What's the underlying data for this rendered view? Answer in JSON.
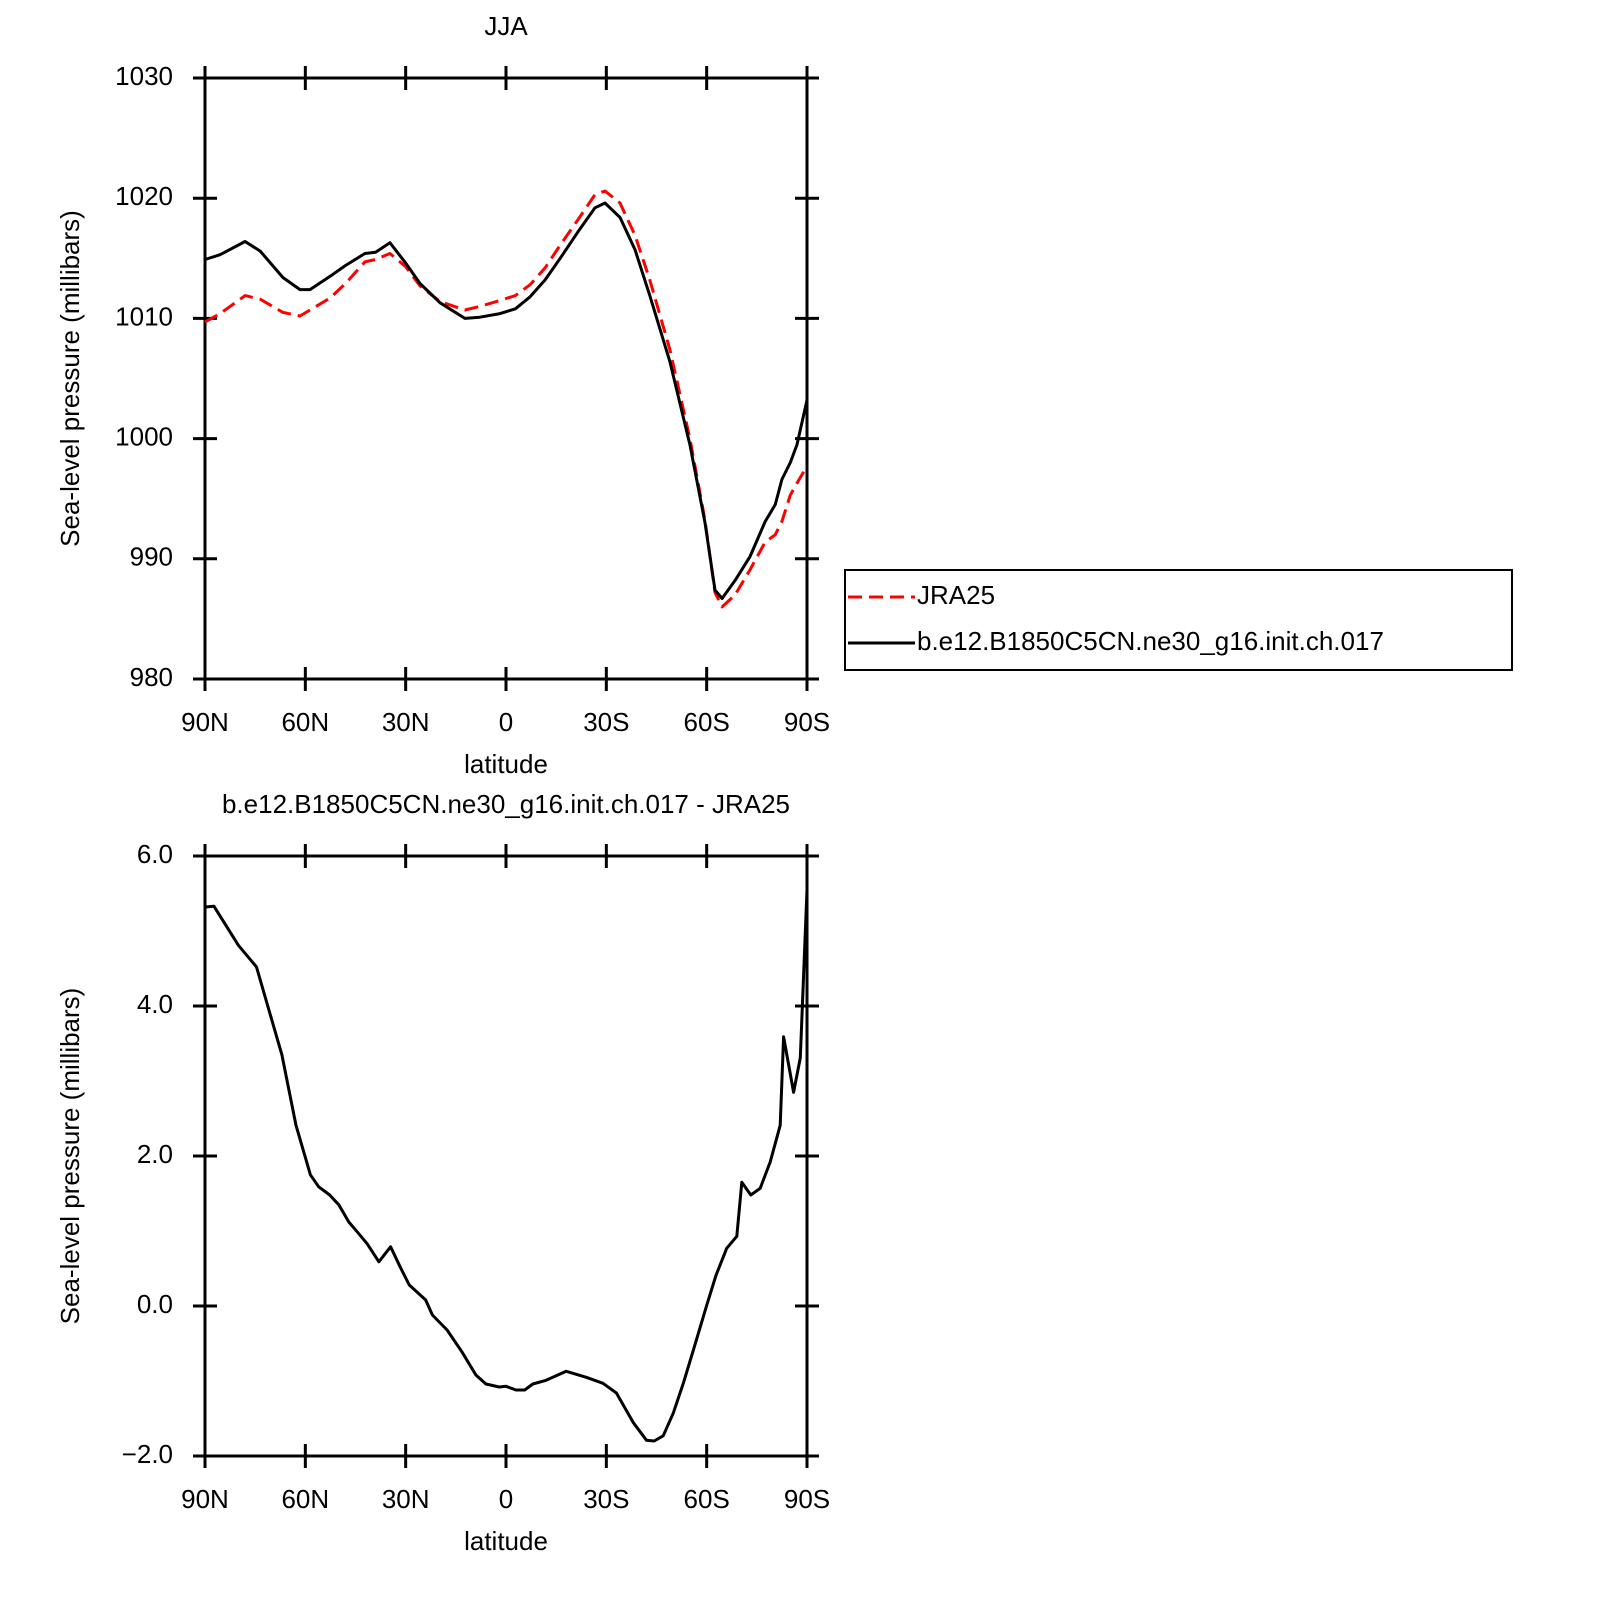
{
  "chart_data": [
    {
      "type": "line",
      "title": "JJA",
      "xlabel": "latitude",
      "ylabel": "Sea-level pressure (millibars)",
      "x": [
        90,
        85.5,
        78,
        73.5,
        66.7,
        61.6,
        58.6,
        52.6,
        48,
        42.2,
        39,
        34.7,
        30,
        25.7,
        19.7,
        12.3,
        7.8,
        1.8,
        -2.8,
        -7.2,
        -11.7,
        -16.2,
        -21.5,
        -26.6,
        -29.6,
        -34.1,
        -38.6,
        -43,
        -49,
        -55,
        -59.5,
        -62.5,
        -64.6,
        -68.5,
        -73,
        -77.5,
        -80.5,
        -82.5,
        -85,
        -87,
        -90
      ],
      "series": [
        {
          "name": "JRA25",
          "color": "#ff0000",
          "line_style": "dashed",
          "values": [
            1009.7,
            1010.4,
            1011.9,
            1011.6,
            1010.5,
            1010.2,
            1010.7,
            1011.7,
            1012.9,
            1014.7,
            1014.9,
            1015.4,
            1014.3,
            1012.7,
            1011.4,
            1010.7,
            1011.0,
            1011.5,
            1011.9,
            1012.8,
            1014.2,
            1016.1,
            1018.2,
            1020.3,
            1020.6,
            1019.6,
            1016.9,
            1013.2,
            1007.4,
            1000.0,
            993.2,
            987.2,
            986.0,
            987.0,
            989.1,
            991.4,
            992.0,
            993.1,
            995.3,
            996.3,
            997.7
          ]
        },
        {
          "name": "b.e12.B1850C5CN.ne30_g16.init.ch.017",
          "color": "#000000",
          "line_style": "solid",
          "values": [
            1014.9,
            1015.3,
            1016.4,
            1015.6,
            1013.4,
            1012.4,
            1012.4,
            1013.5,
            1014.4,
            1015.4,
            1015.5,
            1016.3,
            1014.6,
            1012.9,
            1011.3,
            1010.0,
            1010.1,
            1010.4,
            1010.8,
            1011.8,
            1013.2,
            1015.0,
            1017.2,
            1019.2,
            1019.6,
            1018.4,
            1015.7,
            1011.9,
            1006.4,
            999.5,
            993.0,
            987.4,
            986.7,
            988.2,
            990.2,
            993.1,
            994.5,
            996.6,
            998.0,
            999.5,
            1003.2
          ]
        }
      ],
      "xlim": [
        90,
        -90
      ],
      "ylim": [
        980,
        1030
      ],
      "xticks": [
        {
          "value": 90,
          "label": "90N"
        },
        {
          "value": 60,
          "label": "60N"
        },
        {
          "value": 30,
          "label": "30N"
        },
        0,
        {
          "value": -30,
          "label": "30S"
        },
        {
          "value": -60,
          "label": "60S"
        },
        {
          "value": -90,
          "label": "90S"
        }
      ],
      "yticks": [
        980,
        990,
        1000,
        1010,
        1020,
        1030
      ],
      "legend": "outside right"
    },
    {
      "type": "line",
      "title": "b.e12.B1850C5CN.ne30_g16.init.ch.017 - JRA25",
      "xlabel": "latitude",
      "ylabel": "Sea-level pressure (millibars)",
      "x": [
        90,
        87.3,
        80,
        74.6,
        70,
        67,
        62.8,
        58.5,
        56,
        52.7,
        50,
        47,
        44.5,
        41.5,
        38,
        34.5,
        31.5,
        28.9,
        24,
        22,
        17.6,
        13.2,
        9,
        6,
        2,
        0,
        -3,
        -5.6,
        -8,
        -12,
        -18,
        -24,
        -29,
        -33,
        -38,
        -42,
        -44.3,
        -47,
        -50,
        -53,
        -56,
        -60,
        -62.8,
        -66,
        -69,
        -70.5,
        -73.2,
        -76,
        -79,
        -82,
        -83,
        -86,
        -88,
        -90
      ],
      "values": [
        5.32,
        5.33,
        4.81,
        4.52,
        3.81,
        3.35,
        2.41,
        1.75,
        1.59,
        1.48,
        1.35,
        1.12,
        0.99,
        0.83,
        0.59,
        0.79,
        0.51,
        0.28,
        0.08,
        -0.12,
        -0.32,
        -0.61,
        -0.92,
        -1.04,
        -1.08,
        -1.07,
        -1.12,
        -1.12,
        -1.04,
        -0.99,
        -0.87,
        -0.95,
        -1.03,
        -1.16,
        -1.55,
        -1.79,
        -1.8,
        -1.73,
        -1.43,
        -1.03,
        -0.59,
        0.01,
        0.41,
        0.77,
        0.93,
        1.65,
        1.48,
        1.57,
        1.92,
        2.41,
        3.59,
        2.85,
        3.31,
        5.55
      ],
      "color": "#000000",
      "xlim": [
        90,
        -90
      ],
      "ylim": [
        -2,
        6
      ],
      "xticks": [
        {
          "value": 90,
          "label": "90N"
        },
        {
          "value": 60,
          "label": "60N"
        },
        {
          "value": 30,
          "label": "30N"
        },
        0,
        {
          "value": -30,
          "label": "30S"
        },
        {
          "value": -60,
          "label": "60S"
        },
        {
          "value": -90,
          "label": "90S"
        }
      ],
      "yticks": [
        {
          "value": -2,
          "label": "−2.0"
        },
        {
          "value": 0,
          "label": "0.0"
        },
        {
          "value": 2,
          "label": "2.0"
        },
        {
          "value": 4,
          "label": "4.0"
        },
        {
          "value": 6,
          "label": "6.0"
        }
      ]
    }
  ]
}
